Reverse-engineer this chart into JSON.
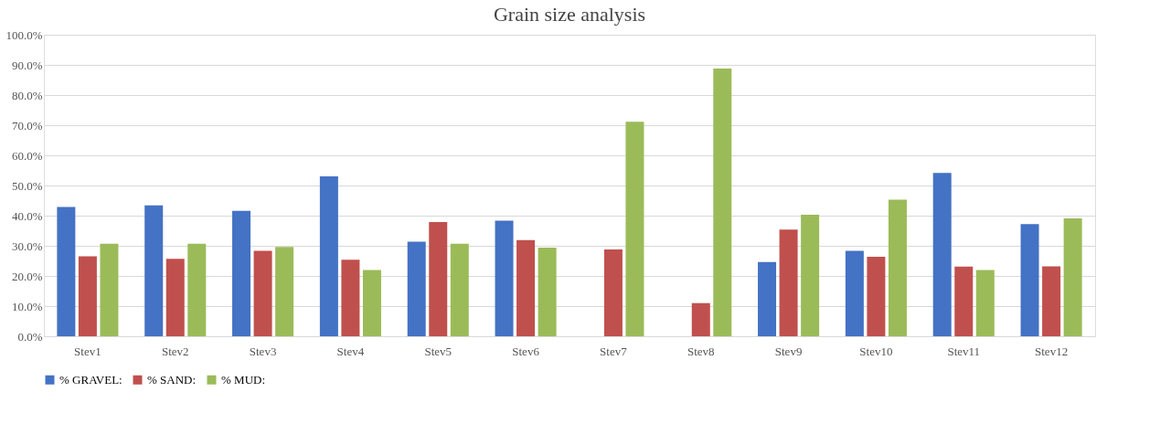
{
  "chart_data": {
    "type": "bar",
    "title": "Grain  size analysis",
    "categories": [
      "Stev1",
      "Stev2",
      "Stev3",
      "Stev4",
      "Stev5",
      "Stev6",
      "Stev7",
      "Stev8",
      "Stev9",
      "Stev10",
      "Stev11",
      "Stev12"
    ],
    "series": [
      {
        "name": "% GRAVEL:",
        "color": "#4472c4",
        "values": [
          42.9,
          43.4,
          41.6,
          53.0,
          31.4,
          38.3,
          0,
          0,
          24.6,
          28.3,
          54.2,
          37.2
        ]
      },
      {
        "name": "% SAND:",
        "color": "#c0504d",
        "values": [
          26.5,
          25.7,
          28.3,
          25.4,
          37.9,
          31.9,
          28.8,
          11.0,
          35.4,
          26.4,
          23.1,
          23.2
        ]
      },
      {
        "name": "% MUD:",
        "color": "#9bbb59",
        "values": [
          30.7,
          30.7,
          29.6,
          22.0,
          30.7,
          29.4,
          71.1,
          88.8,
          40.3,
          45.3,
          22.0,
          39.1
        ]
      }
    ],
    "ylim": [
      0,
      100
    ],
    "yticks": [
      {
        "value": 0,
        "label": "0.0%"
      },
      {
        "value": 10,
        "label": "10.0%"
      },
      {
        "value": 20,
        "label": "20.0%"
      },
      {
        "value": 30,
        "label": "30.0%"
      },
      {
        "value": 40,
        "label": "40.0%"
      },
      {
        "value": 50,
        "label": "50.0%"
      },
      {
        "value": 60,
        "label": "60.0%"
      },
      {
        "value": 70,
        "label": "70.0%"
      },
      {
        "value": 80,
        "label": "80.0%"
      },
      {
        "value": 90,
        "label": "90.0%"
      },
      {
        "value": 100,
        "label": "100.0%"
      }
    ],
    "grid": "y",
    "legend": "bottom"
  }
}
